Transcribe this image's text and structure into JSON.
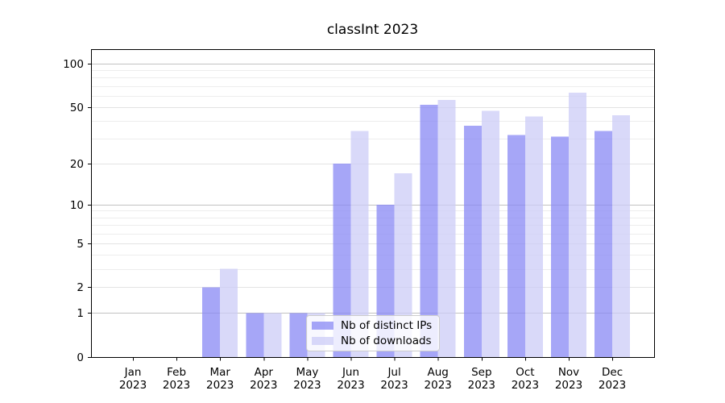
{
  "title": "classInt 2023",
  "chart_data": {
    "type": "bar",
    "title": "classInt 2023",
    "categories": [
      "Jan 2023",
      "Feb 2023",
      "Mar 2023",
      "Apr 2023",
      "May 2023",
      "Jun 2023",
      "Jul 2023",
      "Aug 2023",
      "Sep 2023",
      "Oct 2023",
      "Nov 2023",
      "Dec 2023"
    ],
    "series": [
      {
        "name": "Nb of distinct IPs",
        "color": "#8888f4",
        "values": [
          0,
          0,
          2,
          1,
          1,
          20,
          10,
          52,
          37,
          32,
          31,
          34
        ]
      },
      {
        "name": "Nb of downloads",
        "color": "#ccccf7",
        "values": [
          0,
          0,
          3,
          1,
          1,
          34,
          17,
          56,
          47,
          43,
          63,
          44
        ]
      }
    ],
    "bar_alpha": 0.75,
    "yscale": "log1p",
    "ylim": [
      0,
      126
    ],
    "yticks": [
      100,
      50,
      20,
      10,
      5,
      2,
      1,
      0
    ],
    "grid": {
      "major_values": [
        1,
        10,
        100
      ],
      "mid_values": [
        2,
        5,
        20,
        50
      ],
      "minor_values": [
        3,
        4,
        6,
        7,
        8,
        9,
        30,
        40,
        60,
        70,
        80,
        90
      ],
      "major_color": "#c2c2c2",
      "mid_color": "#e3e3e3",
      "minor_color": "#ededed"
    },
    "legend_position": "lower center",
    "axis_color": "#000000",
    "background_color": "#ffffff"
  }
}
